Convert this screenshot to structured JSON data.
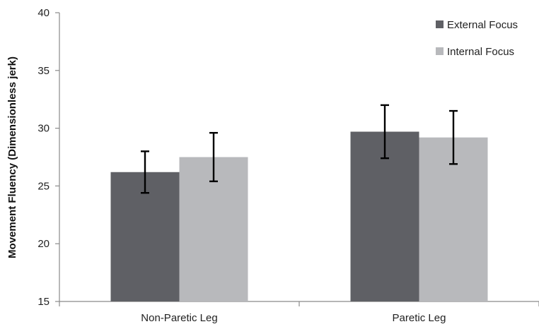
{
  "chart_data": {
    "type": "bar",
    "categories": [
      "Non-Paretic Leg",
      "Paretic Leg"
    ],
    "series": [
      {
        "name": "External Focus",
        "values": [
          26.2,
          29.7
        ],
        "errors": [
          1.8,
          2.3
        ],
        "color": "#5f6065"
      },
      {
        "name": "Internal Focus",
        "values": [
          27.5,
          29.2
        ],
        "errors": [
          2.1,
          2.3
        ],
        "color": "#b8b9bc"
      }
    ],
    "title": "",
    "xlabel": "",
    "ylabel": "Movement Fluency (Dimensionless jerk)",
    "ylim": [
      15,
      40
    ],
    "yticks": [
      15,
      20,
      25,
      30,
      35,
      40
    ],
    "grid": false,
    "legend": "top-right"
  }
}
